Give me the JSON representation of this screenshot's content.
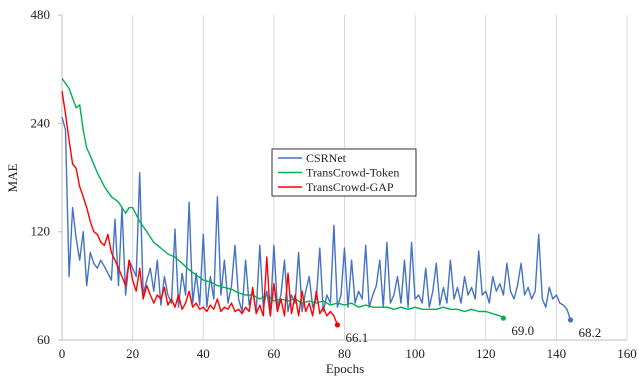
{
  "chart_data": {
    "type": "line",
    "xlabel": "Epochs",
    "ylabel": "MAE",
    "xlim": [
      0,
      160
    ],
    "ylim": [
      60,
      480
    ],
    "y_scale": "log2",
    "x_ticks": [
      "0",
      "20",
      "40",
      "60",
      "80",
      "100",
      "120",
      "140",
      "160"
    ],
    "y_ticks": [
      "60",
      "120",
      "240",
      "480"
    ],
    "grid": "vertical",
    "legend_position": "center",
    "series": [
      {
        "name": "CSRNet",
        "color": "#4472C4",
        "x": [
          0,
          1,
          2,
          3,
          4,
          5,
          6,
          7,
          8,
          9,
          10,
          11,
          12,
          13,
          14,
          15,
          16,
          17,
          18,
          19,
          20,
          21,
          22,
          23,
          24,
          25,
          26,
          27,
          28,
          29,
          30,
          31,
          32,
          33,
          34,
          35,
          36,
          37,
          38,
          39,
          40,
          41,
          42,
          43,
          44,
          45,
          46,
          47,
          48,
          49,
          50,
          51,
          52,
          53,
          54,
          55,
          56,
          57,
          58,
          59,
          60,
          61,
          62,
          63,
          64,
          65,
          66,
          67,
          68,
          69,
          70,
          71,
          72,
          73,
          74,
          75,
          76,
          77,
          78,
          79,
          80,
          81,
          82,
          83,
          84,
          85,
          86,
          87,
          88,
          89,
          90,
          91,
          92,
          93,
          94,
          95,
          96,
          97,
          98,
          99,
          100,
          101,
          102,
          103,
          104,
          105,
          106,
          107,
          108,
          109,
          110,
          111,
          112,
          113,
          114,
          115,
          116,
          117,
          118,
          119,
          120,
          121,
          122,
          123,
          124,
          125,
          126,
          127,
          128,
          129,
          130,
          131,
          132,
          133,
          134,
          135,
          136,
          137,
          138,
          139,
          140,
          141,
          142,
          143,
          144
        ],
        "values": [
          250,
          230,
          90,
          140,
          115,
          100,
          120,
          85,
          105,
          98,
          95,
          100,
          96,
          92,
          88,
          130,
          85,
          140,
          80,
          100,
          95,
          90,
          175,
          80,
          88,
          95,
          82,
          100,
          75,
          90,
          80,
          76,
          122,
          74,
          92,
          80,
          145,
          76,
          92,
          75,
          118,
          74,
          90,
          78,
          150,
          80,
          100,
          76,
          85,
          110,
          78,
          72,
          100,
          75,
          82,
          72,
          110,
          74,
          82,
          70,
          110,
          74,
          80,
          100,
          72,
          80,
          76,
          105,
          72,
          82,
          90,
          74,
          78,
          108,
          72,
          80,
          76,
          125,
          74,
          80,
          108,
          74,
          100,
          76,
          82,
          78,
          110,
          74,
          80,
          85,
          100,
          74,
          112,
          76,
          80,
          90,
          76,
          100,
          74,
          112,
          78,
          80,
          76,
          95,
          74,
          82,
          98,
          75,
          84,
          76,
          100,
          78,
          84,
          76,
          90,
          80,
          84,
          78,
          106,
          80,
          82,
          76,
          90,
          82,
          86,
          80,
          98,
          82,
          78,
          85,
          98,
          80,
          84,
          78,
          82,
          118,
          78,
          74,
          84,
          78,
          80,
          76,
          75,
          73,
          68.2
        ]
      },
      {
        "name": "TransCrowd-Token",
        "color": "#00B050",
        "x": [
          0,
          2,
          4,
          5,
          6,
          7,
          8,
          10,
          12,
          14,
          16,
          18,
          19,
          20,
          22,
          24,
          26,
          28,
          30,
          32,
          34,
          36,
          38,
          40,
          42,
          44,
          46,
          48,
          50,
          52,
          54,
          56,
          58,
          60,
          62,
          64,
          66,
          68,
          70,
          72,
          74,
          76,
          78,
          80,
          82,
          84,
          86,
          88,
          90,
          92,
          94,
          96,
          98,
          100,
          102,
          104,
          106,
          108,
          110,
          112,
          114,
          116,
          118,
          120,
          122,
          124,
          125
        ],
        "values": [
          320,
          300,
          265,
          270,
          230,
          205,
          195,
          175,
          160,
          150,
          145,
          135,
          140,
          140,
          128,
          120,
          112,
          108,
          104,
          102,
          98,
          94,
          91,
          88,
          87,
          85,
          84,
          83,
          81,
          80,
          80,
          78,
          80,
          77,
          78,
          77,
          78,
          76,
          77,
          76,
          77,
          75,
          76,
          75,
          76,
          74,
          75,
          74,
          74,
          74,
          73,
          74,
          73,
          74,
          73,
          73,
          73,
          74,
          73,
          73,
          72,
          73,
          72,
          72,
          71,
          70,
          69.0
        ]
      },
      {
        "name": "TransCrowd-GAP",
        "color": "#FF0000",
        "x": [
          0,
          1,
          2,
          3,
          4,
          5,
          6,
          7,
          8,
          9,
          10,
          11,
          12,
          13,
          14,
          15,
          16,
          17,
          18,
          19,
          20,
          21,
          22,
          23,
          24,
          25,
          26,
          27,
          28,
          29,
          30,
          31,
          32,
          33,
          34,
          35,
          36,
          37,
          38,
          39,
          40,
          41,
          42,
          43,
          44,
          45,
          46,
          47,
          48,
          49,
          50,
          51,
          52,
          53,
          54,
          55,
          56,
          57,
          58,
          59,
          60,
          61,
          62,
          63,
          64,
          65,
          66,
          67,
          68,
          69,
          70,
          71,
          72,
          73,
          74,
          75,
          76,
          77,
          78
        ],
        "values": [
          295,
          255,
          215,
          185,
          180,
          160,
          150,
          140,
          128,
          120,
          118,
          112,
          110,
          118,
          105,
          100,
          95,
          90,
          85,
          100,
          88,
          82,
          95,
          78,
          85,
          80,
          76,
          80,
          78,
          84,
          75,
          78,
          74,
          80,
          73,
          76,
          82,
          74,
          76,
          73,
          74,
          72,
          75,
          73,
          78,
          72,
          74,
          73,
          76,
          72,
          73,
          71,
          74,
          72,
          84,
          71,
          75,
          70,
          102,
          70,
          86,
          72,
          78,
          70,
          92,
          71,
          80,
          70,
          82,
          72,
          76,
          70,
          82,
          71,
          74,
          70,
          72,
          70,
          66.1
        ]
      }
    ],
    "annotations": [
      {
        "text": "66.1",
        "x": 78,
        "y": 66.1,
        "series": 2
      },
      {
        "text": "69.0",
        "x": 125,
        "y": 69.0,
        "series": 1
      },
      {
        "text": "68.2",
        "x": 144,
        "y": 68.2,
        "series": 0
      }
    ]
  }
}
